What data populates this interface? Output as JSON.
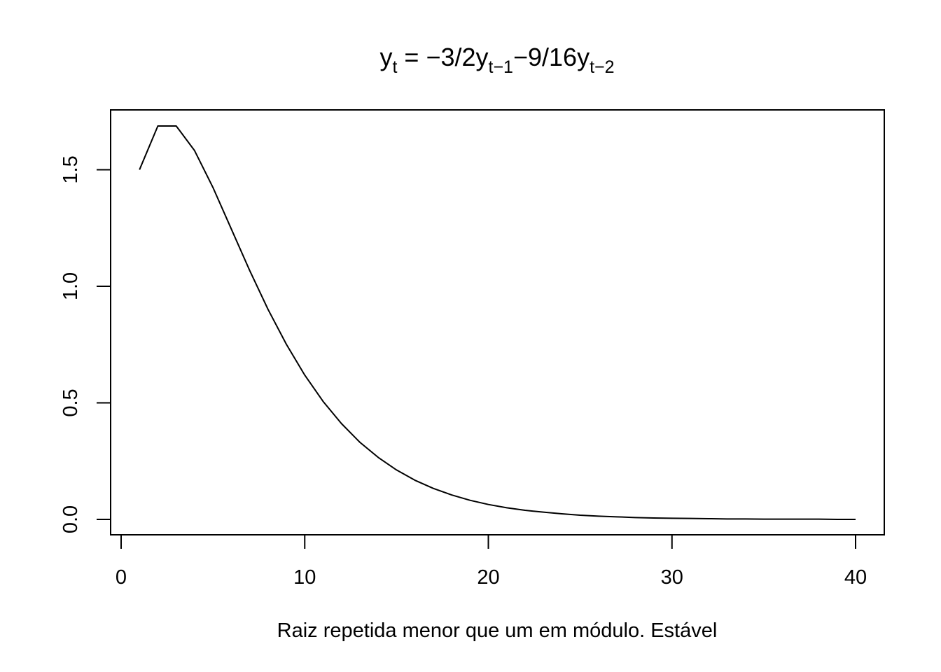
{
  "chart_data": {
    "type": "line",
    "title": {
      "y": "y",
      "t": "t",
      "eq": " = ",
      "minus": "−",
      "frac1": "3/2y",
      "t1": "t−1",
      "frac2": "9/16y",
      "t2": "t−2"
    },
    "xlabel": "Raiz repetida menor que um em módulo. Estável",
    "ylabel": "",
    "xlim": [
      0,
      41.6
    ],
    "ylim": [
      0,
      1.6875
    ],
    "x_ticks": [
      0,
      10,
      20,
      30,
      40
    ],
    "x_tick_labels": [
      "0",
      "10",
      "20",
      "30",
      "40"
    ],
    "y_ticks": [
      0,
      0.5,
      1,
      1.5
    ],
    "y_tick_labels": [
      "0.0",
      "0.5",
      "1.0",
      "1.5"
    ],
    "grid": false,
    "legend": "none",
    "line_color": "#000000",
    "recurrence": {
      "a1": -1.5,
      "a2": -0.5625,
      "n": 40,
      "y1": 1.5,
      "y2": 1.6875
    },
    "series": [
      {
        "x": [
          1,
          2,
          3,
          4,
          5,
          6,
          7,
          8,
          9,
          10,
          11,
          12,
          13,
          14,
          15,
          16,
          17,
          18,
          19,
          20,
          21,
          22,
          23,
          24,
          25,
          26,
          27,
          28,
          29,
          30,
          31,
          32,
          33,
          34,
          35,
          36,
          37,
          38,
          39,
          40
        ],
        "values": [
          1.5,
          1.6875,
          1.6875,
          1.582,
          1.424,
          1.246,
          1.068,
          0.901,
          0.751,
          0.619,
          0.506,
          0.411,
          0.331,
          0.266,
          0.212,
          0.168,
          0.133,
          0.105,
          0.082,
          0.064,
          0.05,
          0.039,
          0.031,
          0.024,
          0.018,
          0.014,
          0.011,
          0.008,
          0.006,
          0.005,
          0.004,
          0.003,
          0.002,
          0.002,
          0.001,
          0.001,
          0.001,
          0.001,
          0.0,
          0.0
        ]
      }
    ]
  }
}
